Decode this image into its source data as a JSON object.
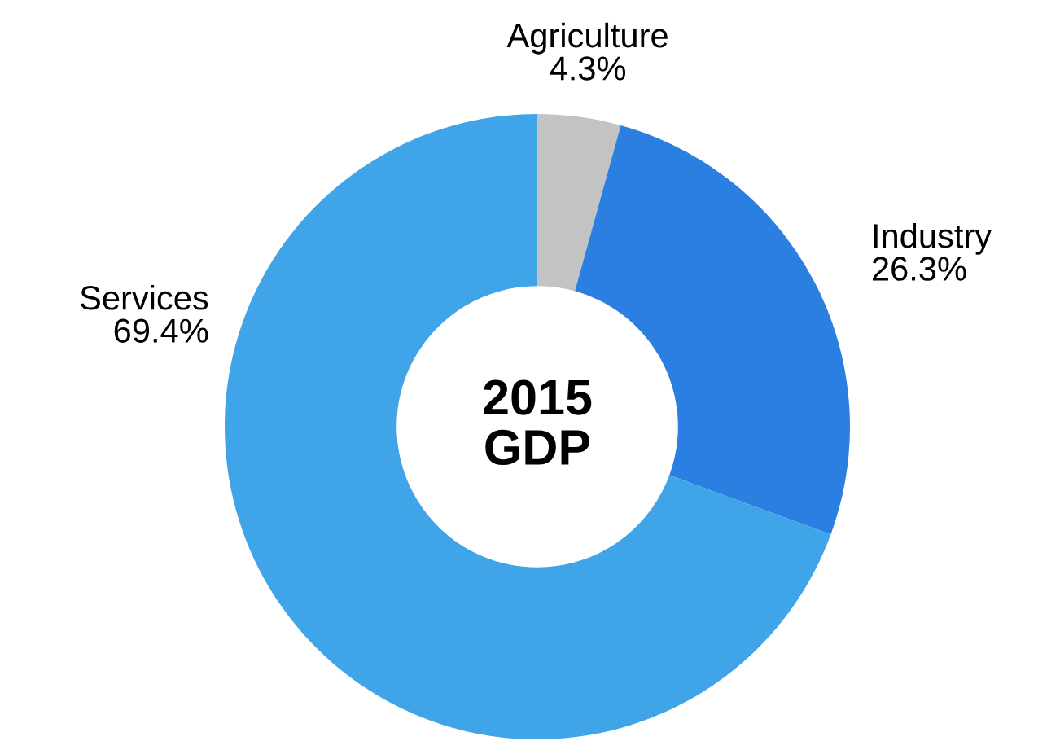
{
  "chart_data": {
    "type": "donut",
    "title": "2015\nGDP",
    "categories": [
      "Agriculture",
      "Industry",
      "Services"
    ],
    "values": [
      4.3,
      26.3,
      69.4
    ],
    "value_labels": [
      "4.3%",
      "26.3%",
      "69.4%"
    ],
    "colors": [
      "#c3c3c3",
      "#2a7fe0",
      "#40a4e8"
    ]
  }
}
